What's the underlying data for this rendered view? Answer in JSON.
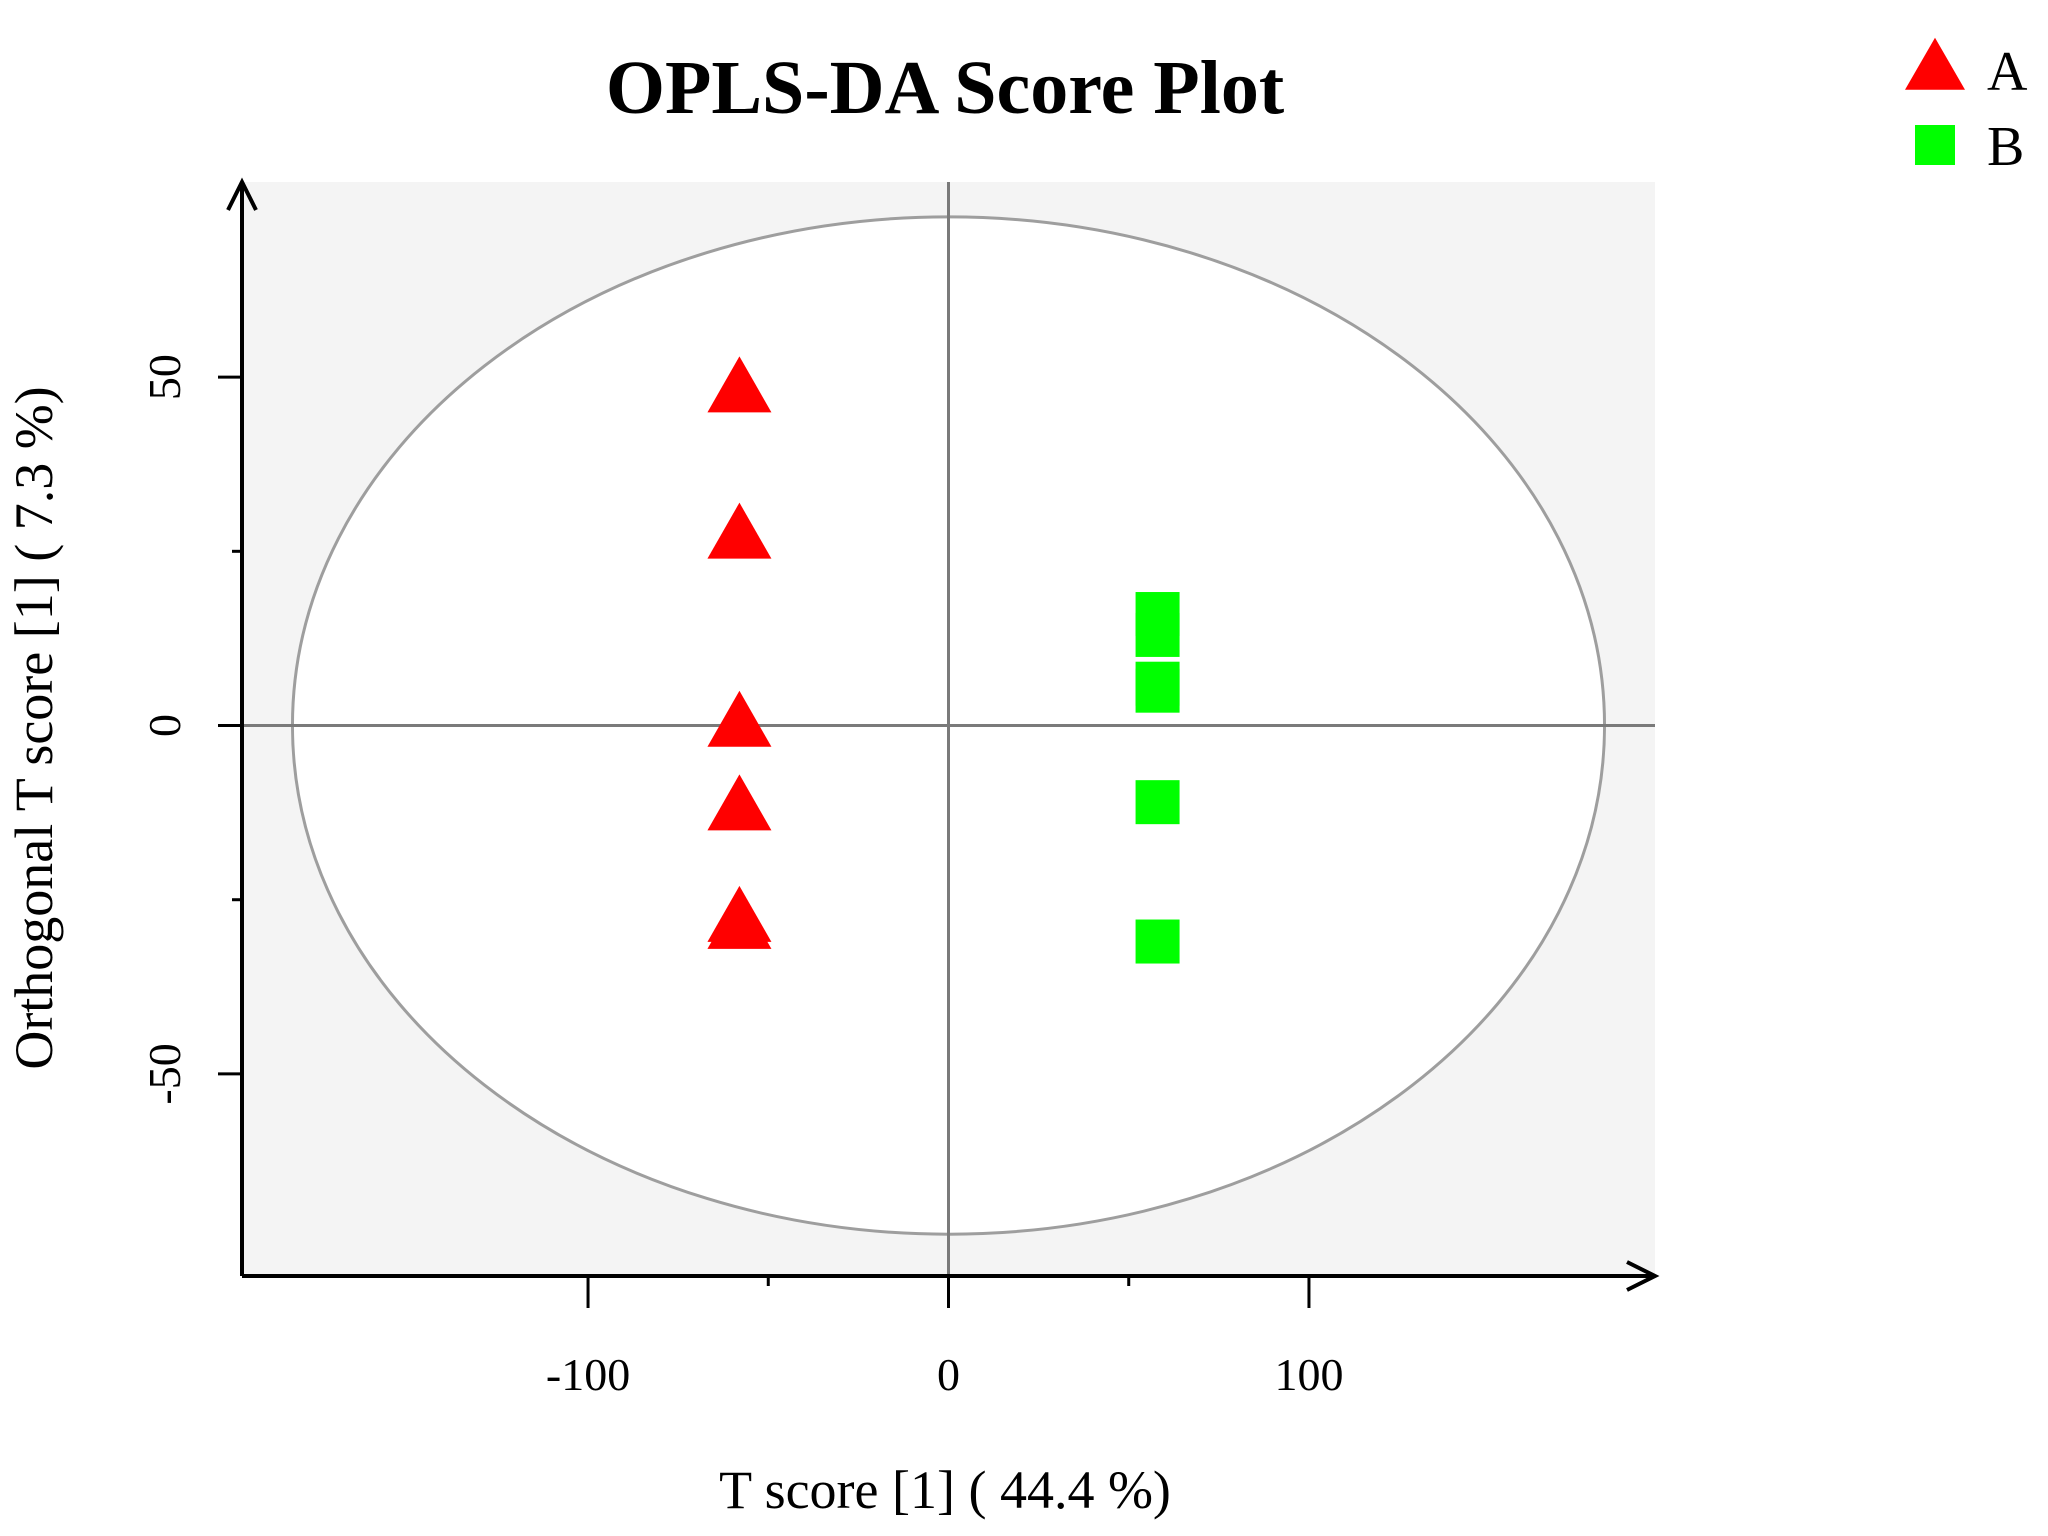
{
  "chart_data": {
    "type": "scatter",
    "title": "OPLS-DA Score Plot",
    "xlabel": "T score [1] ( 44.4 %)",
    "ylabel": "Orthogonal T score [1] ( 7.3 %)",
    "xlim": [
      -196,
      196
    ],
    "ylim": [
      -79,
      78
    ],
    "x_ticks": [
      -100,
      0,
      100
    ],
    "x_tick_labels": [
      "-100",
      "0",
      "100"
    ],
    "x_minor_ticks": [
      -50,
      50
    ],
    "y_ticks": [
      -50,
      0,
      50
    ],
    "y_tick_labels": [
      "-50",
      "0",
      "50"
    ],
    "y_minor_ticks": [
      -25,
      25
    ],
    "ellipse": {
      "cx": 0,
      "cy": 0,
      "rx": 182,
      "ry": 73
    },
    "reference_lines": {
      "x": 0,
      "y": 0
    },
    "grid": false,
    "legend_position": "top-right",
    "series": [
      {
        "name": "A",
        "marker": "triangle",
        "color": "#ff0000",
        "points": [
          {
            "x": -58,
            "y": 48
          },
          {
            "x": -58,
            "y": 27
          },
          {
            "x": -58,
            "y": 0
          },
          {
            "x": -58,
            "y": -12
          },
          {
            "x": -58,
            "y": -29
          },
          {
            "x": -58,
            "y": -28
          }
        ]
      },
      {
        "name": "B",
        "marker": "square",
        "color": "#00ff00",
        "points": [
          {
            "x": 58,
            "y": 16
          },
          {
            "x": 58,
            "y": 13
          },
          {
            "x": 58,
            "y": 6
          },
          {
            "x": 58,
            "y": 5
          },
          {
            "x": 58,
            "y": -11
          },
          {
            "x": 58,
            "y": -31
          }
        ]
      }
    ],
    "colors": {
      "plot_background": "#f4f4f4",
      "ellipse_fill": "#ffffff",
      "ellipse_stroke": "#9e9e9e",
      "reference_line": "#7a7a7a",
      "axis": "#000000"
    }
  }
}
